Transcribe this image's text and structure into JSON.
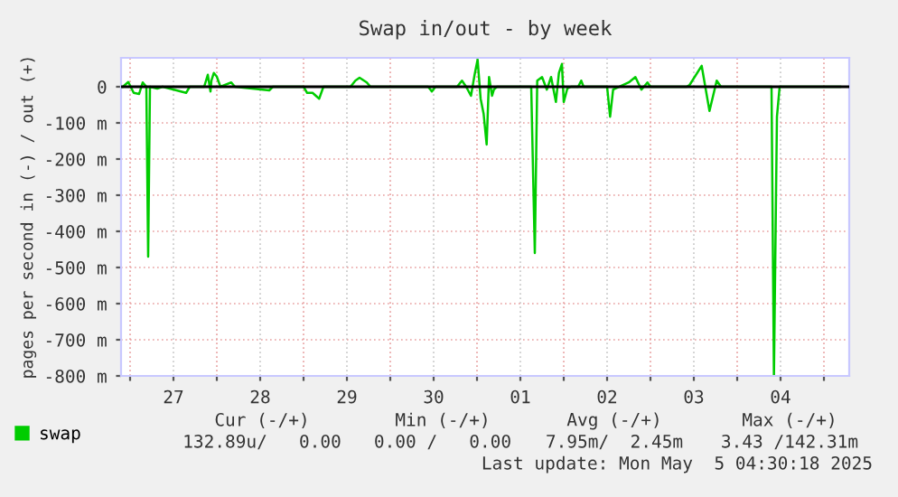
{
  "chart_data": {
    "type": "line",
    "title": "Swap in/out - by week",
    "ylabel": "pages per second in (-) / out (+)",
    "x": [
      "2025-04-26T22:00",
      "2025-04-26T23:30",
      "2025-04-27T01:00",
      "2025-04-27T02:30",
      "2025-04-27T03:30",
      "2025-04-27T04:30",
      "2025-04-27T05:00",
      "2025-04-27T05:30",
      "2025-04-27T07:30",
      "2025-04-27T09:00",
      "2025-04-27T15:30",
      "2025-04-27T16:30",
      "2025-04-27T20:30",
      "2025-04-27T21:30",
      "2025-04-27T22:15",
      "2025-04-27T22:30",
      "2025-04-27T23:10",
      "2025-04-28T00:00",
      "2025-04-28T01:00",
      "2025-04-28T04:00",
      "2025-04-28T05:00",
      "2025-04-28T14:30",
      "2025-04-28T15:30",
      "2025-04-29T00:00",
      "2025-04-29T01:00",
      "2025-04-29T02:30",
      "2025-04-29T04:20",
      "2025-04-29T05:30",
      "2025-04-29T13:00",
      "2025-04-29T14:20",
      "2025-04-29T15:30",
      "2025-04-29T17:30",
      "2025-04-29T18:30",
      "2025-04-30T10:30",
      "2025-04-30T11:30",
      "2025-04-30T12:30",
      "2025-04-30T18:30",
      "2025-04-30T19:50",
      "2025-04-30T21:00",
      "2025-04-30T22:20",
      "2025-04-30T23:20",
      "2025-05-01T00:10",
      "2025-05-01T01:00",
      "2025-05-01T01:50",
      "2025-05-01T02:40",
      "2025-05-01T03:20",
      "2025-05-01T04:10",
      "2025-05-01T04:40",
      "2025-05-01T05:30",
      "2025-05-01T15:00",
      "2025-05-01T16:00",
      "2025-05-01T16:40",
      "2025-05-01T18:00",
      "2025-05-01T19:20",
      "2025-05-01T20:30",
      "2025-05-01T21:50",
      "2025-05-01T22:40",
      "2025-05-01T23:30",
      "2025-05-02T00:00",
      "2025-05-02T01:00",
      "2025-05-02T02:00",
      "2025-05-02T04:00",
      "2025-05-02T04:50",
      "2025-05-02T05:30",
      "2025-05-02T12:00",
      "2025-05-02T12:50",
      "2025-05-02T13:40",
      "2025-05-02T18:00",
      "2025-05-02T19:50",
      "2025-05-02T21:30",
      "2025-05-02T23:10",
      "2025-05-03T00:00",
      "2025-05-03T10:00",
      "2025-05-03T10:50",
      "2025-05-03T14:10",
      "2025-05-03T16:20",
      "2025-05-03T18:20",
      "2025-05-03T19:30",
      "2025-05-04T09:30",
      "2025-05-04T10:10",
      "2025-05-04T11:00",
      "2025-05-04T11:45",
      "2025-05-05T04:30"
    ],
    "series": [
      {
        "name": "swap",
        "color": "#00cc00",
        "values": [
          0,
          13,
          -17,
          -20,
          12,
          0,
          -470,
          0,
          -5,
          0,
          -17,
          0,
          0,
          33,
          -13,
          17,
          38,
          28,
          0,
          12,
          0,
          -10,
          0,
          0,
          -17,
          -17,
          -33,
          0,
          0,
          17,
          25,
          12,
          0,
          0,
          -13,
          0,
          0,
          17,
          0,
          -25,
          33,
          75,
          -33,
          -75,
          -160,
          27,
          -25,
          -8,
          0,
          0,
          -460,
          17,
          27,
          -8,
          27,
          -42,
          38,
          63,
          -42,
          -5,
          0,
          0,
          17,
          0,
          0,
          -83,
          -8,
          12,
          27,
          -8,
          12,
          0,
          0,
          5,
          58,
          -67,
          17,
          0,
          0,
          -800,
          -83,
          0,
          0
        ]
      }
    ],
    "xlim": [
      "2025-04-26T21:30",
      "2025-05-05T07:00"
    ],
    "xticks": [
      {
        "value": "2025-04-27T00:00",
        "label": null
      },
      {
        "value": "2025-04-27T12:00",
        "label": "27"
      },
      {
        "value": "2025-04-28T00:00",
        "label": null
      },
      {
        "value": "2025-04-28T12:00",
        "label": "28"
      },
      {
        "value": "2025-04-29T00:00",
        "label": null
      },
      {
        "value": "2025-04-29T12:00",
        "label": "29"
      },
      {
        "value": "2025-04-30T00:00",
        "label": null
      },
      {
        "value": "2025-04-30T12:00",
        "label": "30"
      },
      {
        "value": "2025-05-01T00:00",
        "label": null
      },
      {
        "value": "2025-05-01T12:00",
        "label": "01"
      },
      {
        "value": "2025-05-02T00:00",
        "label": null
      },
      {
        "value": "2025-05-02T12:00",
        "label": "02"
      },
      {
        "value": "2025-05-03T00:00",
        "label": null
      },
      {
        "value": "2025-05-03T12:00",
        "label": "03"
      },
      {
        "value": "2025-05-04T00:00",
        "label": null
      },
      {
        "value": "2025-05-04T12:00",
        "label": "04"
      },
      {
        "value": "2025-05-05T00:00",
        "label": null
      }
    ],
    "ylim": [
      -800,
      80
    ],
    "yticks": [
      {
        "value": 0,
        "label": "0"
      },
      {
        "value": -100,
        "label": "-100 m"
      },
      {
        "value": -200,
        "label": "-200 m"
      },
      {
        "value": -300,
        "label": "-300 m"
      },
      {
        "value": -400,
        "label": "-400 m"
      },
      {
        "value": -500,
        "label": "-500 m"
      },
      {
        "value": -600,
        "label": "-600 m"
      },
      {
        "value": -700,
        "label": "-700 m"
      },
      {
        "value": -800,
        "label": "-800 m"
      }
    ],
    "ref_lines": [
      {
        "axis": "y",
        "value": 0,
        "color": "#000000"
      }
    ],
    "grid": true,
    "legend": "bottom left",
    "annotations": [
      "Cur (-/+)",
      "Min (-/+)",
      "Avg (-/+)",
      "Max (-/+)",
      "132.89u/   0.00",
      "0.00 /   0.00",
      "7.95m/  2.45m",
      "3.43 /142.31m",
      "Last update: Mon May  5 04:30:18 2025"
    ]
  }
}
